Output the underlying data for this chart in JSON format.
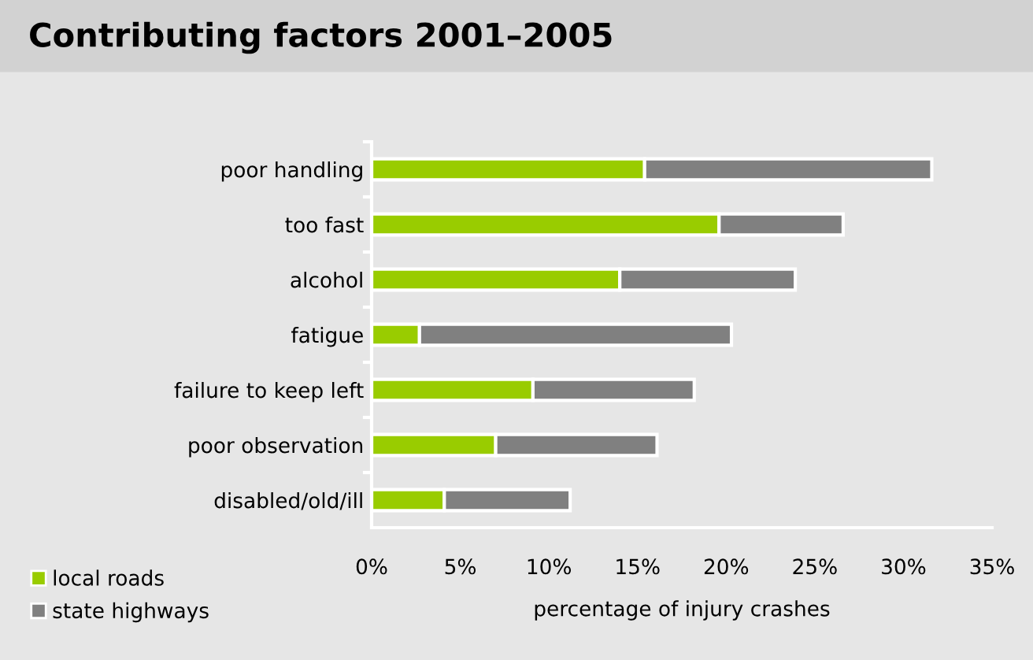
{
  "chart_data": {
    "type": "bar",
    "title": "Contributing factors 2001–2005",
    "xlabel": "percentage of injury crashes",
    "orientation": "horizontal",
    "stacked": true,
    "categories": [
      "poor handling",
      "too fast",
      "alcohol",
      "fatigue",
      "failure to keep left",
      "poor observation",
      "disabled/old/ill"
    ],
    "series": [
      {
        "name": "local roads",
        "color": "#99cc00",
        "values": [
          15.4,
          19.6,
          14.0,
          2.7,
          9.1,
          7.0,
          4.1
        ]
      },
      {
        "name": "state highways",
        "color": "#808080",
        "values": [
          16.2,
          7.0,
          9.9,
          17.6,
          9.1,
          9.1,
          7.1
        ]
      }
    ],
    "xlim": [
      0,
      35
    ],
    "xticks": [
      {
        "value": 0,
        "label": "0%"
      },
      {
        "value": 5,
        "label": "5%"
      },
      {
        "value": 10,
        "label": "10%"
      },
      {
        "value": 15,
        "label": "15%"
      },
      {
        "value": 20,
        "label": "20%"
      },
      {
        "value": 25,
        "label": "25%"
      },
      {
        "value": 30,
        "label": "30%"
      },
      {
        "value": 35,
        "label": "35%"
      }
    ],
    "grid": false,
    "legend": "bottom left"
  }
}
